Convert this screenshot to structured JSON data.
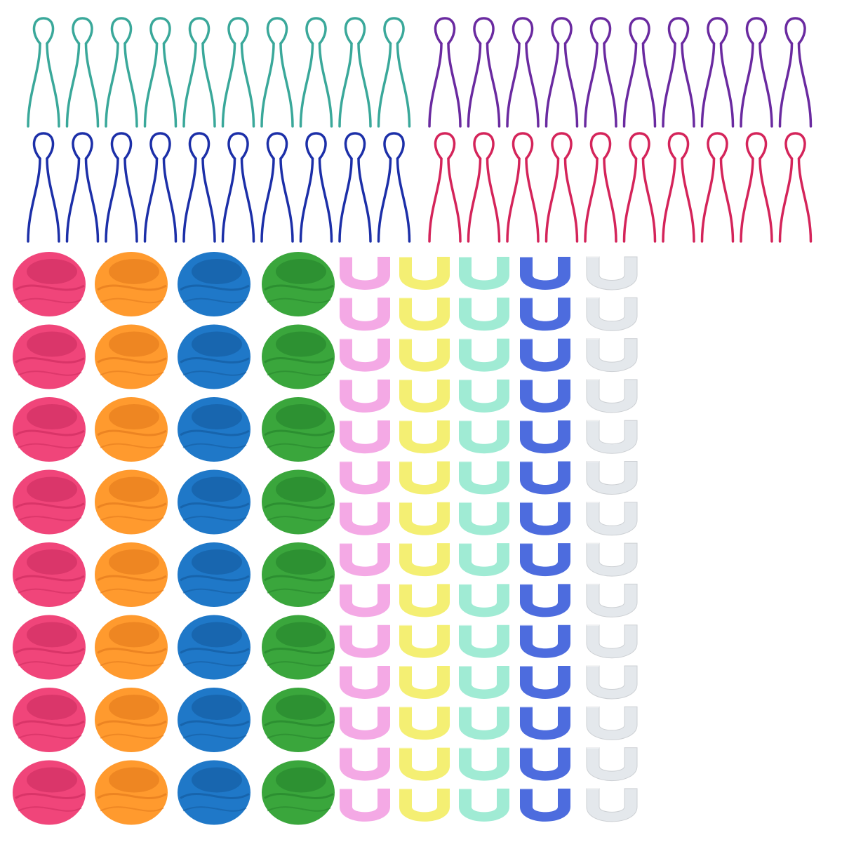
{
  "pins": {
    "groups": [
      {
        "name": "teal",
        "color": "#3aa89a",
        "count": 10
      },
      {
        "name": "purple",
        "color": "#6a2aa0",
        "count": 10
      },
      {
        "name": "blue",
        "color": "#1c2fa8",
        "count": 10
      },
      {
        "name": "pink",
        "color": "#d4245a",
        "count": 10
      }
    ]
  },
  "bobbins": {
    "columns": [
      {
        "name": "pink",
        "color": "#f0457a",
        "shade": "#c92a5c",
        "count": 8
      },
      {
        "name": "orange",
        "color": "#ff9a2e",
        "shade": "#e0761a",
        "count": 8
      },
      {
        "name": "blue",
        "color": "#1f78c8",
        "shade": "#13579a",
        "count": 8
      },
      {
        "name": "green",
        "color": "#3aa63c",
        "shade": "#23802a",
        "count": 8
      }
    ]
  },
  "clips": {
    "columns": [
      {
        "name": "pink",
        "color": "#f29ae0",
        "count": 14
      },
      {
        "name": "yellow",
        "color": "#f2ec5a",
        "count": 14
      },
      {
        "name": "teal",
        "color": "#8fe8cc",
        "count": 14
      },
      {
        "name": "blue",
        "color": "#2e52d8",
        "count": 14
      },
      {
        "name": "clear",
        "color": "#e2e6ea",
        "count": 14
      }
    ]
  }
}
